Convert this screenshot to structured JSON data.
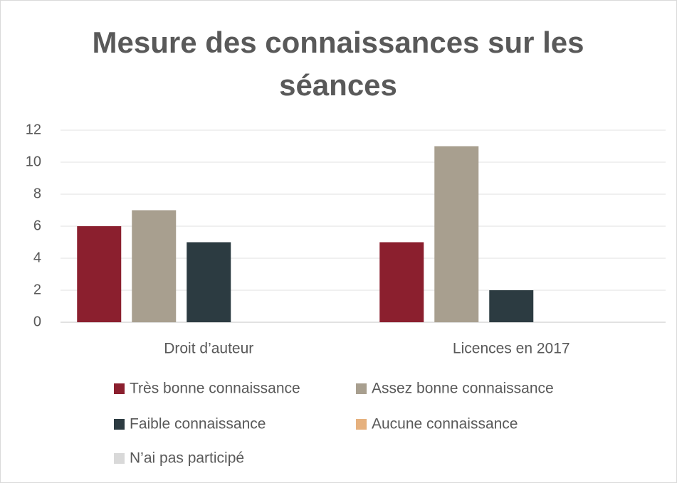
{
  "chart_data": {
    "type": "bar",
    "title": "Mesure des connaissances sur les séances",
    "categories": [
      "Droit d’auteur",
      "Licences en 2017"
    ],
    "series": [
      {
        "name": "Très bonne connaissance",
        "color": "#8b1f2e",
        "values": [
          6,
          5
        ]
      },
      {
        "name": "Assez bonne connaissance",
        "color": "#a89f8f",
        "values": [
          7,
          11
        ]
      },
      {
        "name": "Faible connaissance",
        "color": "#2c3b41",
        "values": [
          5,
          2
        ]
      },
      {
        "name": "Aucune connaissance",
        "color": "#e6b17e",
        "values": [
          0,
          0
        ]
      },
      {
        "name": "N’ai pas participé",
        "color": "#d9d9d9",
        "values": [
          0,
          0
        ]
      }
    ],
    "ylim": [
      0,
      12
    ],
    "yticks": [
      0,
      2,
      4,
      6,
      8,
      10,
      12
    ],
    "grid": true,
    "legend": "bottom"
  }
}
